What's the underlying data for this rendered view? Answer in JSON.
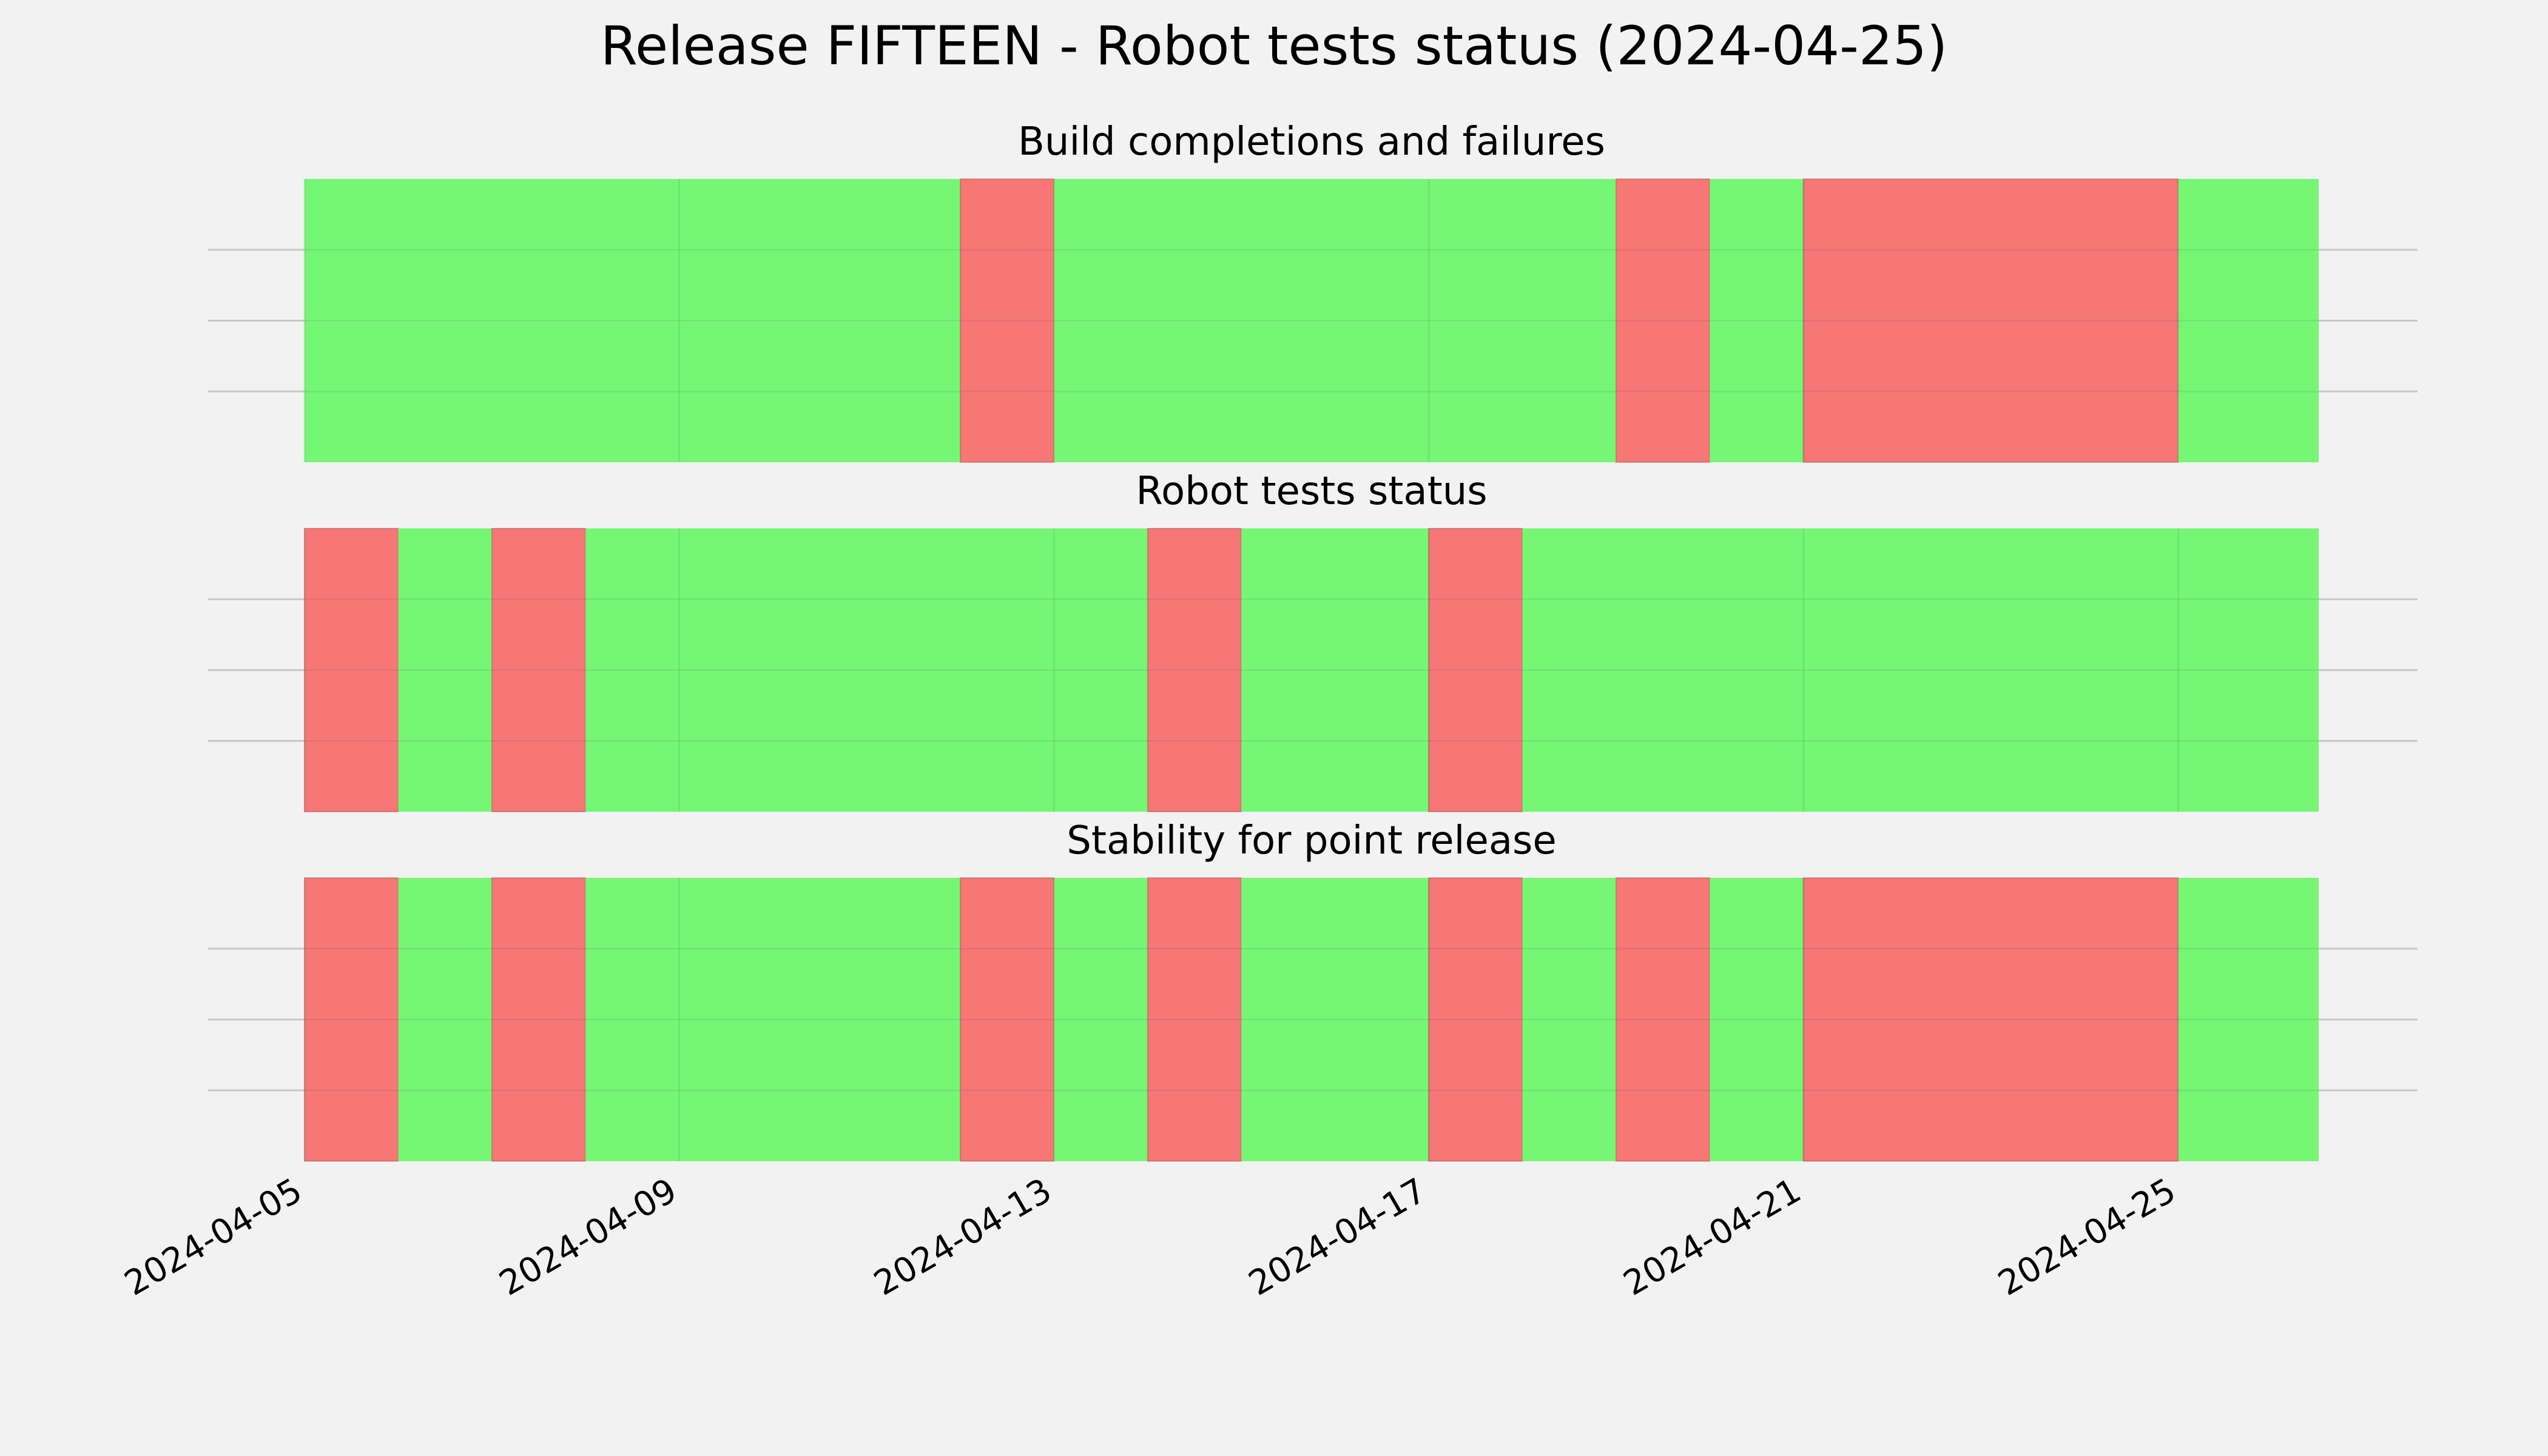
{
  "chart_data": {
    "type": "timeline",
    "title": "Release FIFTEEN - Robot tests status (2024-04-25)",
    "x_range": [
      "2024-04-05",
      "2024-04-26 12:00"
    ],
    "x_ticks": [
      "2024-04-05",
      "2024-04-09",
      "2024-04-13",
      "2024-04-17",
      "2024-04-21",
      "2024-04-25"
    ],
    "colors": {
      "pass": "#75f775",
      "fail": "#f77777",
      "background": "#f2f2f2",
      "grid": "#c8c8c8"
    },
    "grid": true,
    "panels": [
      {
        "title": "Build completions and failures",
        "segments": [
          {
            "start": "2024-04-05 00:00",
            "end": "2024-04-12 00:00",
            "status": "pass"
          },
          {
            "start": "2024-04-12 00:00",
            "end": "2024-04-13 00:00",
            "status": "fail"
          },
          {
            "start": "2024-04-13 00:00",
            "end": "2024-04-19 00:00",
            "status": "pass"
          },
          {
            "start": "2024-04-19 00:00",
            "end": "2024-04-20 00:00",
            "status": "fail"
          },
          {
            "start": "2024-04-20 00:00",
            "end": "2024-04-21 00:00",
            "status": "pass"
          },
          {
            "start": "2024-04-21 00:00",
            "end": "2024-04-25 00:00",
            "status": "fail"
          },
          {
            "start": "2024-04-25 00:00",
            "end": "2024-04-26 12:00",
            "status": "pass"
          }
        ]
      },
      {
        "title": "Robot tests status",
        "segments": [
          {
            "start": "2024-04-05 00:00",
            "end": "2024-04-06 00:00",
            "status": "fail"
          },
          {
            "start": "2024-04-06 00:00",
            "end": "2024-04-07 00:00",
            "status": "pass"
          },
          {
            "start": "2024-04-07 00:00",
            "end": "2024-04-08 00:00",
            "status": "fail"
          },
          {
            "start": "2024-04-08 00:00",
            "end": "2024-04-14 00:00",
            "status": "pass"
          },
          {
            "start": "2024-04-14 00:00",
            "end": "2024-04-15 00:00",
            "status": "fail"
          },
          {
            "start": "2024-04-15 00:00",
            "end": "2024-04-17 00:00",
            "status": "pass"
          },
          {
            "start": "2024-04-17 00:00",
            "end": "2024-04-18 00:00",
            "status": "fail"
          },
          {
            "start": "2024-04-18 00:00",
            "end": "2024-04-26 12:00",
            "status": "pass"
          }
        ]
      },
      {
        "title": "Stability for point release",
        "segments": [
          {
            "start": "2024-04-05 00:00",
            "end": "2024-04-06 00:00",
            "status": "fail"
          },
          {
            "start": "2024-04-06 00:00",
            "end": "2024-04-07 00:00",
            "status": "pass"
          },
          {
            "start": "2024-04-07 00:00",
            "end": "2024-04-08 00:00",
            "status": "fail"
          },
          {
            "start": "2024-04-08 00:00",
            "end": "2024-04-12 00:00",
            "status": "pass"
          },
          {
            "start": "2024-04-12 00:00",
            "end": "2024-04-13 00:00",
            "status": "fail"
          },
          {
            "start": "2024-04-13 00:00",
            "end": "2024-04-14 00:00",
            "status": "pass"
          },
          {
            "start": "2024-04-14 00:00",
            "end": "2024-04-15 00:00",
            "status": "fail"
          },
          {
            "start": "2024-04-15 00:00",
            "end": "2024-04-17 00:00",
            "status": "pass"
          },
          {
            "start": "2024-04-17 00:00",
            "end": "2024-04-18 00:00",
            "status": "fail"
          },
          {
            "start": "2024-04-18 00:00",
            "end": "2024-04-19 00:00",
            "status": "pass"
          },
          {
            "start": "2024-04-19 00:00",
            "end": "2024-04-20 00:00",
            "status": "fail"
          },
          {
            "start": "2024-04-20 00:00",
            "end": "2024-04-21 00:00",
            "status": "pass"
          },
          {
            "start": "2024-04-21 00:00",
            "end": "2024-04-25 00:00",
            "status": "fail"
          },
          {
            "start": "2024-04-25 00:00",
            "end": "2024-04-26 12:00",
            "status": "pass"
          }
        ]
      }
    ]
  }
}
